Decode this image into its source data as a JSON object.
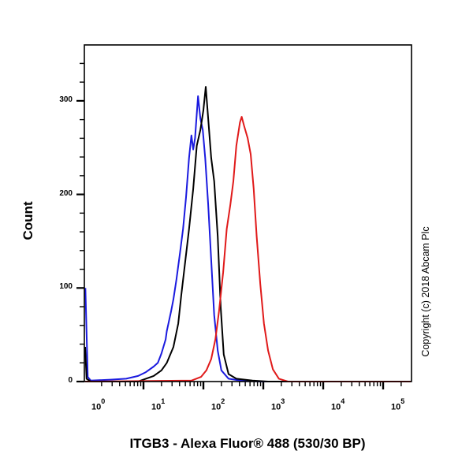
{
  "chart_data": {
    "type": "line",
    "subtype": "flow-cytometry-histogram",
    "title": "",
    "xlabel": "ITGB3 - Alexa Fluor® 488 (530/30 BP)",
    "ylabel": "Count",
    "x_scale": "log10",
    "xlim_log10": [
      -0.02,
      5.47
    ],
    "ylim": [
      0,
      360
    ],
    "x_ticks": [
      {
        "base": "10",
        "exp": "0",
        "log10": 0
      },
      {
        "base": "10",
        "exp": "1",
        "log10": 1
      },
      {
        "base": "10",
        "exp": "2",
        "log10": 2
      },
      {
        "base": "10",
        "exp": "3",
        "log10": 3
      },
      {
        "base": "10",
        "exp": "4",
        "log10": 4
      },
      {
        "base": "10",
        "exp": "5",
        "log10": 5
      }
    ],
    "y_ticks": [
      0,
      100,
      200,
      300
    ],
    "grid": false,
    "legend": null,
    "annotation": "Copyright (c) 2018 Abcam Plc",
    "series": [
      {
        "name": "blue",
        "color": "#1a1adf",
        "x_log10": [
          0.03,
          0.07,
          0.12,
          0.45,
          0.71,
          0.91,
          1.04,
          1.17,
          1.24,
          1.3,
          1.37,
          1.39,
          1.46,
          1.5,
          1.55,
          1.61,
          1.66,
          1.71,
          1.76,
          1.8,
          1.83,
          1.86,
          1.91,
          1.95,
          1.99,
          2.03,
          2.08,
          2.13,
          2.18,
          2.24,
          2.3,
          2.42,
          2.62,
          2.95,
          5.47
        ],
        "counts": [
          100,
          5,
          1,
          2,
          3,
          6,
          10,
          16,
          20,
          30,
          45,
          54,
          75,
          88,
          109,
          138,
          163,
          197,
          239,
          263,
          248,
          260,
          305,
          281,
          269,
          239,
          189,
          130,
          71,
          33,
          12,
          3,
          1,
          0,
          0
        ]
      },
      {
        "name": "black",
        "color": "#000000",
        "x_log10": [
          0.01,
          0.05,
          0.12,
          0.91,
          1.04,
          1.17,
          1.3,
          1.39,
          1.5,
          1.58,
          1.63,
          1.7,
          1.76,
          1.83,
          1.89,
          1.95,
          2.0,
          2.04,
          2.08,
          2.13,
          2.18,
          2.24,
          2.29,
          2.34,
          2.42,
          2.55,
          2.82,
          3.08,
          5.47
        ],
        "counts": [
          37,
          3,
          0,
          0,
          3,
          6,
          12,
          20,
          37,
          62,
          92,
          130,
          163,
          206,
          252,
          269,
          290,
          315,
          281,
          239,
          214,
          155,
          79,
          29,
          8,
          3,
          1,
          0,
          0
        ]
      },
      {
        "name": "red",
        "color": "#e01a1a",
        "x_log10": [
          0.0,
          1.8,
          1.96,
          2.05,
          2.13,
          2.2,
          2.26,
          2.33,
          2.39,
          2.45,
          2.5,
          2.55,
          2.61,
          2.64,
          2.68,
          2.74,
          2.79,
          2.84,
          2.89,
          2.95,
          3.01,
          3.08,
          3.16,
          3.26,
          3.41,
          5.47
        ],
        "counts": [
          0,
          1,
          5,
          12,
          24,
          45,
          75,
          117,
          163,
          189,
          214,
          252,
          277,
          283,
          273,
          260,
          243,
          206,
          155,
          104,
          62,
          33,
          13,
          3,
          0,
          0
        ]
      }
    ]
  },
  "labels": {
    "ylabel": "Count",
    "xlabel": "ITGB3 - Alexa Fluor® 488 (530/30 BP)",
    "copyright": "Copyright (c) 2018 Abcam Plc"
  },
  "colors": {
    "frame": "#000000",
    "background": "#ffffff"
  }
}
